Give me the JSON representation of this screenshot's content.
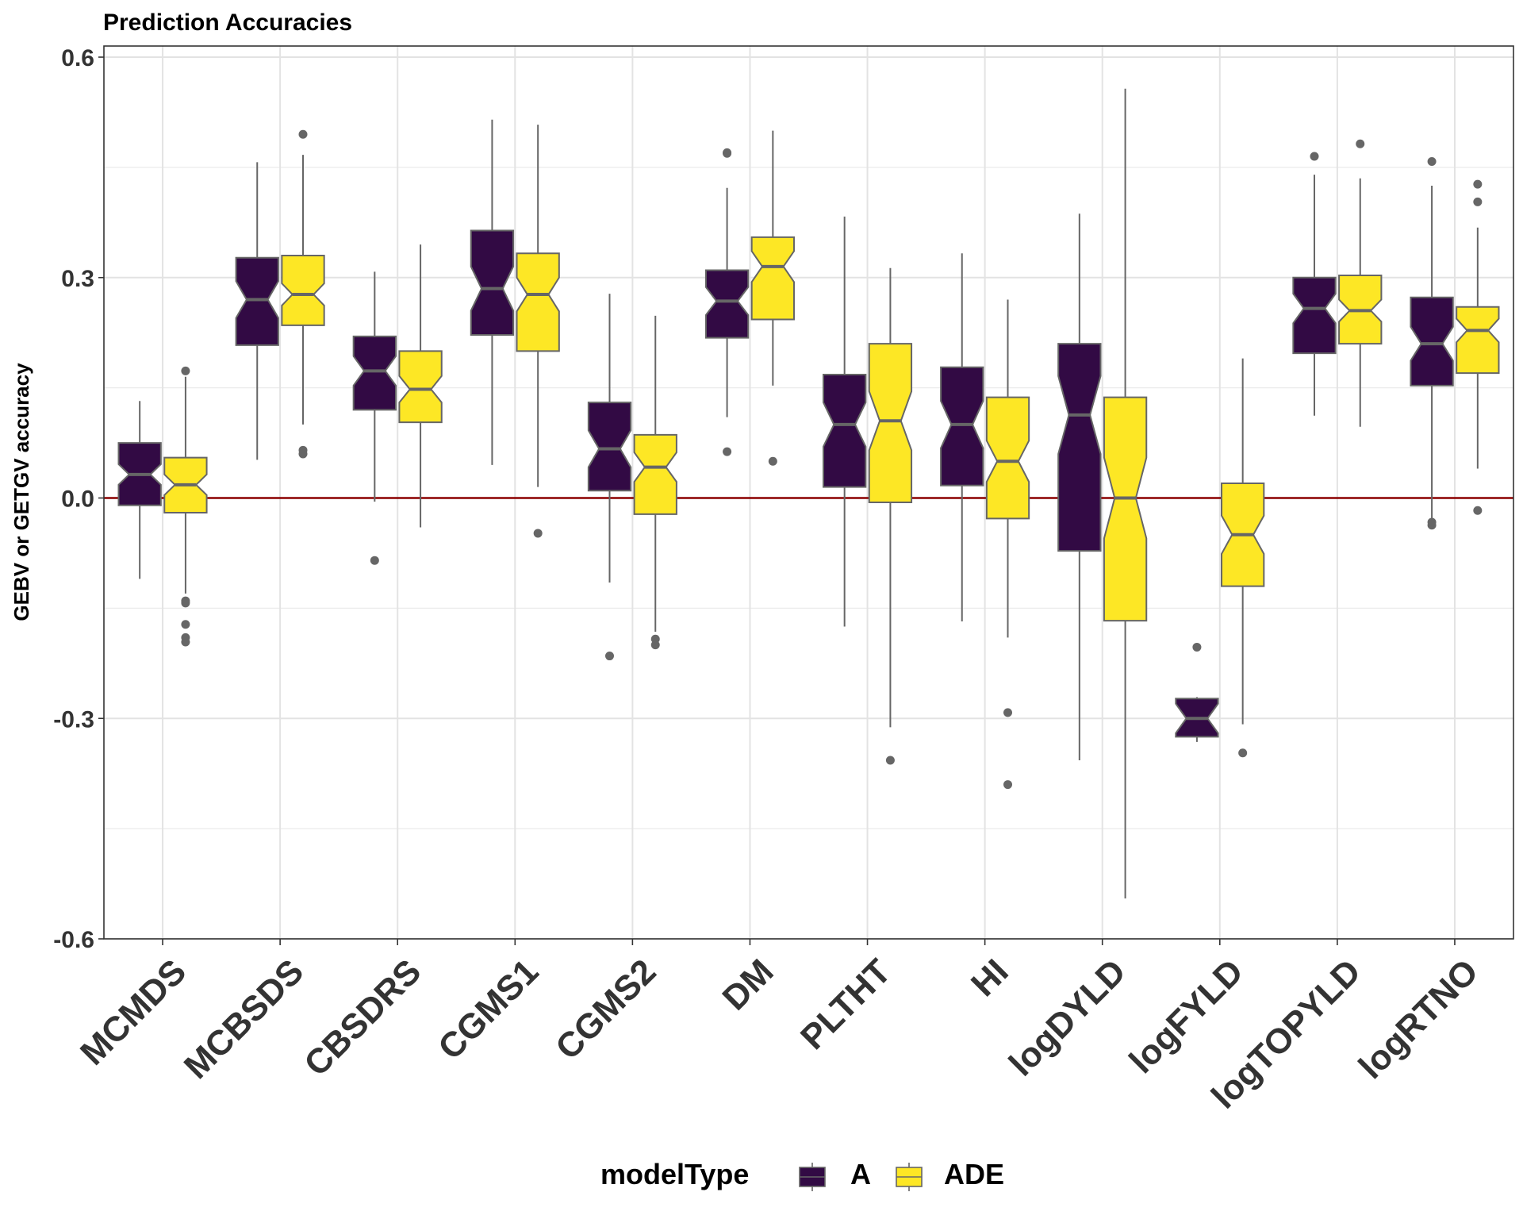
{
  "chart_data": {
    "type": "boxplot",
    "title": "Prediction Accuracies",
    "ylabel": "GEBV or GETGV accuracy",
    "xlabel": "",
    "ylim": [
      -0.6,
      0.6
    ],
    "y_ticks": [
      "-0.6",
      "-0.3",
      "0.0",
      "0.3",
      "0.6"
    ],
    "y_tick_values": [
      -0.6,
      -0.3,
      0.0,
      0.3,
      0.6
    ],
    "categories": [
      "MCMDS",
      "MCBSDS",
      "CBSDRS",
      "CGMS1",
      "CGMS2",
      "DM",
      "PLTHT",
      "HI",
      "logDYLD",
      "logFYLD",
      "logTOPYLD",
      "logRTNO"
    ],
    "reference_line": {
      "y": 0.0,
      "color": "#8B0000"
    },
    "legend": {
      "title": "modelType",
      "position": "bottom"
    },
    "grid": true,
    "series": [
      {
        "name": "A",
        "color": "#440154",
        "fill": "#320A44",
        "boxes": [
          {
            "category": "MCMDS",
            "whisker_low": -0.11,
            "q1": -0.01,
            "median": 0.032,
            "q3": 0.075,
            "whisker_high": 0.132,
            "notch_low": 0.018,
            "notch_high": 0.046,
            "outliers": []
          },
          {
            "category": "MCBSDS",
            "whisker_low": 0.052,
            "q1": 0.208,
            "median": 0.27,
            "q3": 0.327,
            "whisker_high": 0.457,
            "notch_low": 0.245,
            "notch_high": 0.295,
            "outliers": []
          },
          {
            "category": "CBSDRS",
            "whisker_low": -0.005,
            "q1": 0.12,
            "median": 0.173,
            "q3": 0.22,
            "whisker_high": 0.308,
            "notch_low": 0.153,
            "notch_high": 0.193,
            "outliers": [
              -0.085
            ]
          },
          {
            "category": "CGMS1",
            "whisker_low": 0.045,
            "q1": 0.222,
            "median": 0.285,
            "q3": 0.364,
            "whisker_high": 0.515,
            "notch_low": 0.255,
            "notch_high": 0.315,
            "outliers": []
          },
          {
            "category": "CGMS2",
            "whisker_low": -0.115,
            "q1": 0.01,
            "median": 0.067,
            "q3": 0.13,
            "whisker_high": 0.278,
            "notch_low": 0.042,
            "notch_high": 0.092,
            "outliers": [
              -0.215
            ]
          },
          {
            "category": "DM",
            "whisker_low": 0.11,
            "q1": 0.218,
            "median": 0.268,
            "q3": 0.31,
            "whisker_high": 0.422,
            "notch_low": 0.249,
            "notch_high": 0.287,
            "outliers": [
              0.469,
              0.47,
              0.063
            ]
          },
          {
            "category": "PLTHT",
            "whisker_low": -0.175,
            "q1": 0.015,
            "median": 0.1,
            "q3": 0.168,
            "whisker_high": 0.383,
            "notch_low": 0.07,
            "notch_high": 0.13,
            "outliers": []
          },
          {
            "category": "HI",
            "whisker_low": -0.168,
            "q1": 0.017,
            "median": 0.1,
            "q3": 0.178,
            "whisker_high": 0.333,
            "notch_low": 0.068,
            "notch_high": 0.132,
            "outliers": []
          },
          {
            "category": "logDYLD",
            "whisker_low": -0.357,
            "q1": -0.072,
            "median": 0.113,
            "q3": 0.21,
            "whisker_high": 0.387,
            "notch_low": 0.06,
            "notch_high": 0.166,
            "outliers": []
          },
          {
            "category": "logFYLD",
            "whisker_low": -0.332,
            "q1": -0.325,
            "median": -0.3,
            "q3": -0.273,
            "whisker_high": -0.271,
            "notch_low": -0.32,
            "notch_high": -0.28,
            "outliers": [
              -0.203
            ]
          },
          {
            "category": "logTOPYLD",
            "whisker_low": 0.112,
            "q1": 0.197,
            "median": 0.258,
            "q3": 0.3,
            "whisker_high": 0.44,
            "notch_low": 0.238,
            "notch_high": 0.278,
            "outliers": [
              0.465
            ]
          },
          {
            "category": "logRTNO",
            "whisker_low": -0.03,
            "q1": 0.153,
            "median": 0.21,
            "q3": 0.273,
            "whisker_high": 0.425,
            "notch_low": 0.187,
            "notch_high": 0.233,
            "outliers": [
              0.458,
              -0.033,
              -0.037
            ]
          }
        ]
      },
      {
        "name": "ADE",
        "color": "#FDE725",
        "fill": "#FDE725",
        "boxes": [
          {
            "category": "MCMDS",
            "whisker_low": -0.13,
            "q1": -0.02,
            "median": 0.018,
            "q3": 0.055,
            "whisker_high": 0.165,
            "notch_low": 0.004,
            "notch_high": 0.032,
            "outliers": [
              0.173,
              -0.14,
              -0.143,
              -0.172,
              -0.19,
              -0.196
            ]
          },
          {
            "category": "MCBSDS",
            "whisker_low": 0.1,
            "q1": 0.235,
            "median": 0.277,
            "q3": 0.33,
            "whisker_high": 0.467,
            "notch_low": 0.262,
            "notch_high": 0.292,
            "outliers": [
              0.495,
              0.06,
              0.065
            ]
          },
          {
            "category": "CBSDRS",
            "whisker_low": -0.04,
            "q1": 0.103,
            "median": 0.148,
            "q3": 0.2,
            "whisker_high": 0.345,
            "notch_low": 0.13,
            "notch_high": 0.166,
            "outliers": []
          },
          {
            "category": "CGMS1",
            "whisker_low": 0.015,
            "q1": 0.2,
            "median": 0.277,
            "q3": 0.333,
            "whisker_high": 0.508,
            "notch_low": 0.254,
            "notch_high": 0.3,
            "outliers": [
              -0.048
            ]
          },
          {
            "category": "CGMS2",
            "whisker_low": -0.182,
            "q1": -0.022,
            "median": 0.042,
            "q3": 0.086,
            "whisker_high": 0.248,
            "notch_low": 0.022,
            "notch_high": 0.062,
            "outliers": [
              -0.192,
              -0.2
            ]
          },
          {
            "category": "DM",
            "whisker_low": 0.153,
            "q1": 0.243,
            "median": 0.315,
            "q3": 0.355,
            "whisker_high": 0.5,
            "notch_low": 0.294,
            "notch_high": 0.336,
            "outliers": [
              0.05
            ]
          },
          {
            "category": "PLTHT",
            "whisker_low": -0.312,
            "q1": -0.006,
            "median": 0.105,
            "q3": 0.21,
            "whisker_high": 0.313,
            "notch_low": 0.065,
            "notch_high": 0.145,
            "outliers": [
              -0.357
            ]
          },
          {
            "category": "HI",
            "whisker_low": -0.19,
            "q1": -0.028,
            "median": 0.05,
            "q3": 0.137,
            "whisker_high": 0.27,
            "notch_low": 0.022,
            "notch_high": 0.078,
            "outliers": [
              -0.292,
              -0.39
            ]
          },
          {
            "category": "logDYLD",
            "whisker_low": -0.545,
            "q1": -0.167,
            "median": 0.0,
            "q3": 0.137,
            "whisker_high": 0.557,
            "notch_low": -0.055,
            "notch_high": 0.055,
            "outliers": []
          },
          {
            "category": "logFYLD",
            "whisker_low": -0.308,
            "q1": -0.12,
            "median": -0.05,
            "q3": 0.02,
            "whisker_high": 0.19,
            "notch_low": -0.076,
            "notch_high": -0.024,
            "outliers": [
              -0.347
            ]
          },
          {
            "category": "logTOPYLD",
            "whisker_low": 0.097,
            "q1": 0.21,
            "median": 0.255,
            "q3": 0.303,
            "whisker_high": 0.435,
            "notch_low": 0.24,
            "notch_high": 0.27,
            "outliers": [
              0.482
            ]
          },
          {
            "category": "logRTNO",
            "whisker_low": 0.04,
            "q1": 0.17,
            "median": 0.228,
            "q3": 0.26,
            "whisker_high": 0.368,
            "notch_low": 0.212,
            "notch_high": 0.244,
            "outliers": [
              0.427,
              0.403,
              -0.017
            ]
          }
        ]
      }
    ]
  }
}
